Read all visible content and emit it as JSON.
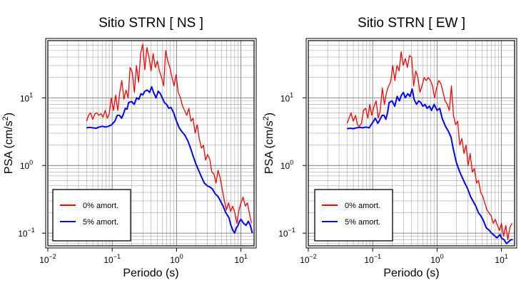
{
  "chart_data": [
    {
      "type": "line",
      "title": "Sitio STRN [ NS ]",
      "xlabel": "Periodo (s)",
      "ylabel_base": "PSA (cm/s",
      "ylabel_sup": "2",
      "ylabel_close": ")",
      "xscale": "log",
      "yscale": "log",
      "xlim": [
        0.01,
        16
      ],
      "ylim": [
        0.065,
        70
      ],
      "grid": true,
      "legend_position": "bottom-left",
      "x_tick_labels": [
        {
          "base": "10",
          "exp": "−2"
        },
        {
          "base": "10",
          "exp": "−1"
        },
        {
          "base": "10",
          "exp": "0"
        },
        {
          "base": "10",
          "exp": "1"
        }
      ],
      "y_tick_labels": [
        {
          "base": "10",
          "exp": "−1"
        },
        {
          "base": "10",
          "exp": "0"
        },
        {
          "base": "10",
          "exp": "1"
        }
      ],
      "series": [
        {
          "name": "0% amort.",
          "color": "#ff0000",
          "x": [
            0.04,
            0.043,
            0.046,
            0.05,
            0.054,
            0.058,
            0.062,
            0.067,
            0.072,
            0.078,
            0.084,
            0.09,
            0.097,
            0.105,
            0.113,
            0.122,
            0.131,
            0.141,
            0.152,
            0.164,
            0.177,
            0.19,
            0.205,
            0.221,
            0.238,
            0.257,
            0.277,
            0.298,
            0.321,
            0.346,
            0.373,
            0.402,
            0.433,
            0.467,
            0.503,
            0.542,
            0.584,
            0.63,
            0.678,
            0.731,
            0.788,
            0.849,
            0.915,
            0.986,
            1.06,
            1.15,
            1.24,
            1.33,
            1.44,
            1.55,
            1.67,
            1.8,
            1.94,
            2.09,
            2.25,
            2.43,
            2.62,
            2.82,
            3.04,
            3.27,
            3.53,
            3.8,
            4.1,
            4.41,
            4.76,
            5.13,
            5.52,
            5.95,
            6.42,
            6.91,
            7.45,
            8.03,
            8.65,
            9.33,
            10.0,
            10.8,
            11.7,
            12.6,
            13.5,
            14.6
          ],
          "y": [
            4.5,
            5.5,
            6.0,
            4.8,
            5.8,
            6.0,
            5.5,
            5.8,
            5.2,
            6.5,
            5.0,
            5.8,
            10.0,
            6.5,
            11.0,
            6.5,
            12.0,
            18.0,
            9.5,
            13.0,
            10.0,
            28.0,
            24.0,
            12.0,
            30.0,
            17.0,
            45.0,
            62.0,
            26.0,
            55.0,
            40.0,
            25.0,
            45.0,
            28.0,
            35.0,
            25.0,
            20.0,
            15.0,
            50.0,
            35.0,
            28.0,
            20.0,
            15.0,
            22.0,
            12.0,
            10.0,
            7.5,
            6.5,
            5.5,
            7.0,
            4.5,
            5.0,
            3.0,
            4.0,
            2.5,
            1.8,
            2.0,
            1.2,
            1.45,
            1.25,
            0.8,
            0.75,
            0.55,
            0.85,
            0.65,
            0.45,
            0.3,
            0.22,
            0.28,
            0.21,
            0.25,
            0.2,
            0.14,
            0.22,
            0.28,
            0.34,
            0.25,
            0.28,
            0.2,
            0.14
          ]
        },
        {
          "name": "5% amort.",
          "color": "#0000ff",
          "x": [
            0.04,
            0.045,
            0.05,
            0.056,
            0.063,
            0.07,
            0.078,
            0.088,
            0.098,
            0.11,
            0.12,
            0.13,
            0.14,
            0.15,
            0.16,
            0.17,
            0.18,
            0.2,
            0.22,
            0.24,
            0.26,
            0.28,
            0.3,
            0.32,
            0.35,
            0.38,
            0.41,
            0.44,
            0.48,
            0.52,
            0.56,
            0.6,
            0.65,
            0.7,
            0.76,
            0.82,
            0.9,
            1.0,
            1.1,
            1.2,
            1.35,
            1.5,
            1.65,
            1.8,
            2.0,
            2.2,
            2.4,
            2.7,
            3.0,
            3.3,
            3.6,
            4.0,
            4.4,
            4.8,
            5.3,
            5.8,
            6.5,
            7.0,
            7.5,
            8.0,
            8.5,
            9.0,
            9.5,
            10.0,
            11.0,
            12.0,
            13.0,
            14.0,
            15.0
          ],
          "y": [
            3.6,
            3.65,
            3.6,
            3.55,
            3.7,
            3.8,
            3.7,
            3.8,
            4.0,
            4.5,
            5.5,
            5.5,
            5.0,
            5.8,
            7.0,
            6.8,
            8.5,
            8.8,
            8.0,
            10.0,
            9.5,
            11.5,
            11.0,
            12.5,
            13.0,
            12.0,
            14.5,
            12.0,
            10.0,
            12.5,
            11.5,
            10.0,
            8.5,
            8.0,
            7.0,
            7.2,
            6.0,
            4.5,
            3.6,
            3.2,
            2.8,
            2.3,
            1.8,
            1.4,
            1.05,
            0.85,
            0.7,
            0.55,
            0.5,
            0.48,
            0.45,
            0.38,
            0.35,
            0.3,
            0.25,
            0.2,
            0.17,
            0.13,
            0.11,
            0.1,
            0.12,
            0.13,
            0.15,
            0.16,
            0.14,
            0.13,
            0.15,
            0.13,
            0.1
          ]
        }
      ]
    },
    {
      "type": "line",
      "title": "Sitio STRN [ EW ]",
      "xlabel": "Periodo (s)",
      "ylabel_base": "PSA (cm/s",
      "ylabel_sup": "2",
      "ylabel_close": ")",
      "xscale": "log",
      "yscale": "log",
      "xlim": [
        0.01,
        16
      ],
      "ylim": [
        0.065,
        70
      ],
      "grid": true,
      "legend_position": "bottom-left",
      "x_tick_labels": [
        {
          "base": "10",
          "exp": "−2"
        },
        {
          "base": "10",
          "exp": "−1"
        },
        {
          "base": "10",
          "exp": "0"
        },
        {
          "base": "10",
          "exp": "1"
        }
      ],
      "y_tick_labels": [
        {
          "base": "10",
          "exp": "−1"
        },
        {
          "base": "10",
          "exp": "0"
        },
        {
          "base": "10",
          "exp": "1"
        }
      ],
      "series": [
        {
          "name": "0% amort.",
          "color": "#ff0000",
          "x": [
            0.04,
            0.043,
            0.046,
            0.05,
            0.054,
            0.058,
            0.062,
            0.067,
            0.072,
            0.078,
            0.084,
            0.09,
            0.097,
            0.105,
            0.113,
            0.122,
            0.131,
            0.141,
            0.152,
            0.164,
            0.177,
            0.19,
            0.205,
            0.221,
            0.238,
            0.257,
            0.277,
            0.298,
            0.321,
            0.346,
            0.373,
            0.402,
            0.433,
            0.467,
            0.503,
            0.542,
            0.584,
            0.63,
            0.678,
            0.731,
            0.788,
            0.849,
            0.915,
            0.986,
            1.06,
            1.15,
            1.24,
            1.33,
            1.44,
            1.55,
            1.67,
            1.8,
            1.94,
            2.09,
            2.25,
            2.43,
            2.62,
            2.82,
            3.04,
            3.27,
            3.53,
            3.8,
            4.1,
            4.41,
            4.76,
            5.13,
            5.52,
            5.95,
            6.42,
            6.91,
            7.45,
            8.03,
            8.65,
            9.33,
            10.0,
            10.8,
            11.7,
            12.6,
            13.5,
            14.6
          ],
          "y": [
            4.2,
            5.0,
            6.0,
            4.5,
            5.5,
            4.0,
            3.8,
            4.2,
            6.5,
            7.0,
            5.0,
            8.0,
            5.5,
            7.5,
            9.0,
            5.0,
            6.5,
            14.0,
            8.0,
            12.0,
            15.0,
            17.0,
            30.0,
            18.0,
            30.0,
            25.0,
            48.0,
            30.0,
            38.0,
            28.0,
            42.0,
            40.0,
            15.0,
            25.0,
            20.0,
            12.0,
            15.0,
            20.0,
            18.0,
            20.0,
            18.0,
            15.0,
            10.0,
            14.0,
            18.0,
            16.0,
            12.0,
            9.0,
            8.0,
            6.5,
            15.0,
            5.5,
            4.0,
            4.5,
            2.0,
            2.5,
            1.5,
            2.0,
            1.0,
            1.5,
            0.8,
            0.9,
            0.55,
            0.6,
            0.4,
            0.35,
            0.28,
            0.22,
            0.2,
            0.18,
            0.14,
            0.16,
            0.13,
            0.11,
            0.14,
            0.09,
            0.13,
            0.08,
            0.12,
            0.14
          ]
        },
        {
          "name": "5% amort.",
          "color": "#0000ff",
          "x": [
            0.04,
            0.045,
            0.05,
            0.056,
            0.063,
            0.07,
            0.078,
            0.088,
            0.098,
            0.11,
            0.12,
            0.13,
            0.14,
            0.15,
            0.16,
            0.17,
            0.18,
            0.2,
            0.22,
            0.24,
            0.26,
            0.28,
            0.3,
            0.32,
            0.35,
            0.38,
            0.41,
            0.44,
            0.48,
            0.52,
            0.56,
            0.6,
            0.65,
            0.7,
            0.76,
            0.82,
            0.9,
            1.0,
            1.1,
            1.2,
            1.35,
            1.5,
            1.65,
            1.8,
            2.0,
            2.2,
            2.4,
            2.7,
            3.0,
            3.3,
            3.6,
            4.0,
            4.4,
            4.8,
            5.3,
            5.8,
            6.5,
            7.0,
            7.5,
            8.0,
            8.5,
            9.0,
            9.5,
            10.0,
            11.0,
            12.0,
            13.0,
            14.0,
            15.0
          ],
          "y": [
            3.5,
            3.55,
            3.5,
            3.6,
            3.65,
            3.6,
            3.7,
            3.6,
            4.2,
            5.0,
            4.2,
            4.8,
            5.5,
            5.5,
            4.8,
            6.0,
            8.5,
            9.0,
            7.5,
            10.5,
            9.0,
            11.0,
            12.0,
            10.0,
            11.5,
            10.5,
            13.5,
            9.5,
            8.0,
            9.0,
            8.5,
            7.5,
            8.0,
            7.0,
            7.5,
            6.5,
            8.0,
            6.5,
            7.0,
            5.0,
            3.8,
            3.2,
            2.6,
            1.7,
            1.1,
            0.85,
            0.7,
            0.55,
            0.45,
            0.35,
            0.3,
            0.25,
            0.2,
            0.18,
            0.15,
            0.12,
            0.11,
            0.1,
            0.095,
            0.09,
            0.085,
            0.09,
            0.095,
            0.085,
            0.08,
            0.07,
            0.075,
            0.08,
            0.08
          ]
        }
      ]
    }
  ]
}
